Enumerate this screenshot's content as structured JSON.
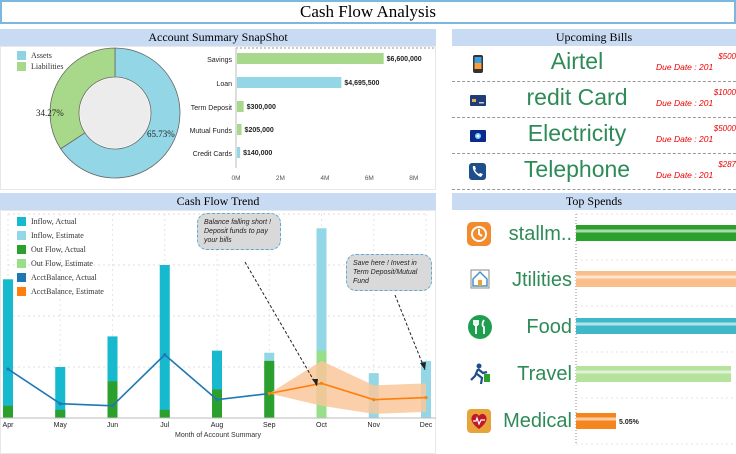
{
  "title": "Cash Flow Analysis",
  "account_summary": {
    "header": "Account Summary SnapShot",
    "donut": {
      "legend": [
        {
          "label": "Assets",
          "color": "#8fd3e3"
        },
        {
          "label": "Liabilities",
          "color": "#a8d98a"
        }
      ],
      "slices": [
        {
          "label": "Assets",
          "percent": 65.73,
          "text": "65.73%",
          "color": "#93d7e6"
        },
        {
          "label": "Liabilities",
          "percent": 34.27,
          "text": "34.27%",
          "color": "#a8d98a"
        }
      ]
    },
    "bars": {
      "categories": [
        "Savings",
        "Loan",
        "Term Deposit",
        "Mutual Funds",
        "Credit Cards"
      ],
      "values": [
        6600000,
        4695500,
        300000,
        205000,
        140000
      ],
      "labels": [
        "$6,600,000",
        "$4,695,500",
        "$300,000",
        "$205,000",
        "$140,000"
      ],
      "colors": [
        "#a8d98a",
        "#93d7e6",
        "#a8d98a",
        "#a8d98a",
        "#93d7e6"
      ],
      "max": 9000000,
      "ticks": [
        "0M",
        "2M",
        "4M",
        "6M",
        "8M"
      ]
    }
  },
  "upcoming_bills": {
    "header": "Upcoming Bills",
    "items": [
      {
        "name": "Airtel",
        "amount": "$500",
        "due": "Due Date : 201",
        "icon": "mobile-phone-icon"
      },
      {
        "name": "redit Card",
        "amount": "$1000",
        "due": "Due Date : 201",
        "icon": "credit-card-icon"
      },
      {
        "name": "Electricity",
        "amount": "$5000",
        "due": "Due Date : 201",
        "icon": "electricity-icon"
      },
      {
        "name": "Telephone",
        "amount": "$287",
        "due": "Due Date : 201",
        "icon": "telephone-icon"
      }
    ]
  },
  "cash_flow_trend": {
    "header": "Cash Flow Trend",
    "legend": [
      {
        "label": "Inflow, Actual",
        "color": "#17b9cf"
      },
      {
        "label": "Inflow, Estimate",
        "color": "#93d7e6"
      },
      {
        "label": "Out Flow, Actual",
        "color": "#2ca02c"
      },
      {
        "label": "Out Flow, Estimate",
        "color": "#98df8a"
      },
      {
        "label": "AcctBalance, Actual",
        "color": "#1f77b4"
      },
      {
        "label": "AcctBalance, Estimate",
        "color": "#ff7f0e"
      }
    ],
    "xlabel": "Month of Account Summary",
    "annotations": {
      "balance": "Balance falling short ! Deposit funds to pay your bills",
      "save": "Save here ! Invest in Term Deposit/Mutual Fund"
    }
  },
  "top_spends": {
    "header": "Top Spends",
    "items": [
      {
        "name": "stallm..",
        "color": "#2ca02c",
        "icon": "installment-icon"
      },
      {
        "name": "Jtilities",
        "color": "#f9be8c",
        "icon": "utilities-icon"
      },
      {
        "name": "Food",
        "color": "#3fb8c9",
        "icon": "food-icon"
      },
      {
        "name": "Travel",
        "color": "#b5e29c",
        "icon": "travel-icon"
      },
      {
        "name": "Medical",
        "color": "#f5861f",
        "icon": "medical-icon",
        "label": "5.05%"
      }
    ]
  },
  "chart_data": {
    "type": "bar",
    "title": "Cash Flow Trend",
    "xlabel": "Month of Account Summary",
    "ylabel": "",
    "categories": [
      "Apr",
      "May",
      "Jun",
      "Jul",
      "Aug",
      "Sep",
      "Oct",
      "Nov",
      "Dec"
    ],
    "ylim": [
      0,
      100
    ],
    "series": [
      {
        "name": "Inflow, Actual",
        "values": [
          68,
          25,
          40,
          75,
          33,
          0,
          0,
          0,
          0
        ]
      },
      {
        "name": "Inflow, Estimate",
        "values": [
          0,
          0,
          0,
          0,
          0,
          32,
          93,
          22,
          28
        ]
      },
      {
        "name": "Out Flow, Actual",
        "values": [
          6,
          4,
          18,
          4,
          14,
          28,
          0,
          0,
          0
        ]
      },
      {
        "name": "Out Flow, Estimate",
        "values": [
          0,
          0,
          0,
          0,
          0,
          0,
          33,
          0,
          0
        ]
      },
      {
        "name": "AcctBalance, Actual",
        "type": "line",
        "values": [
          24,
          7,
          6,
          31,
          9,
          12,
          null,
          null,
          null
        ]
      },
      {
        "name": "AcctBalance, Estimate",
        "type": "line",
        "values": [
          null,
          null,
          null,
          null,
          null,
          12,
          17,
          9,
          10
        ]
      }
    ]
  }
}
